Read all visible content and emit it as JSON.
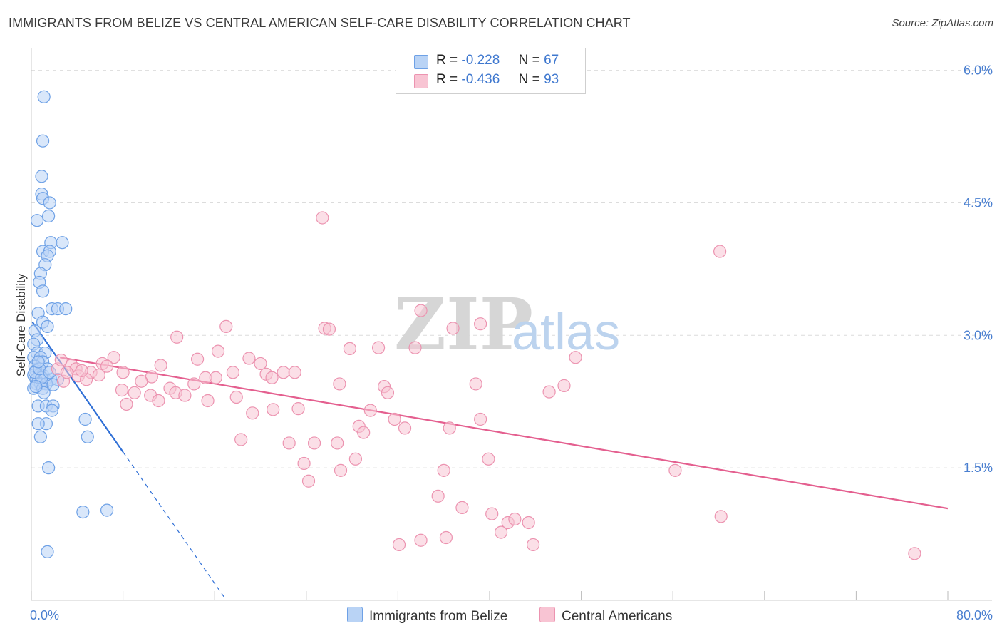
{
  "header": {
    "title": "IMMIGRANTS FROM BELIZE VS CENTRAL AMERICAN SELF-CARE DISABILITY CORRELATION CHART",
    "source": "Source: ZipAtlas.com"
  },
  "watermark": {
    "zip": "ZIP",
    "atlas": "atlas"
  },
  "stats": {
    "belize": {
      "r_label": "R =",
      "r": "-0.228",
      "n_label": "N =",
      "n": "67"
    },
    "central": {
      "r_label": "R =",
      "r": "-0.436",
      "n_label": "N =",
      "n": "93"
    }
  },
  "legend": {
    "belize": "Immigrants from Belize",
    "central": "Central Americans"
  },
  "colors": {
    "belize_fill": "#b9d3f5",
    "belize_stroke": "#6ea1e6",
    "belize_line": "#2f6fd6",
    "central_fill": "#f8c4d3",
    "central_stroke": "#ec93b0",
    "central_line": "#e45f8f",
    "tick": "#4a7fd0",
    "grid": "#dcdcdc"
  },
  "chart_data": {
    "type": "scatter",
    "title": "IMMIGRANTS FROM BELIZE VS CENTRAL AMERICAN SELF-CARE DISABILITY CORRELATION CHART",
    "xlabel": "",
    "ylabel": "Self-Care Disability",
    "xlim": [
      0,
      80
    ],
    "ylim": [
      0,
      6.15
    ],
    "x_tick_labels": [
      {
        "value": 0,
        "label": "0.0%"
      },
      {
        "value": 80,
        "label": "80.0%"
      }
    ],
    "y_ticks": [
      {
        "value": 1.5,
        "label": "1.5%"
      },
      {
        "value": 3.0,
        "label": "3.0%"
      },
      {
        "value": 4.5,
        "label": "4.5%"
      },
      {
        "value": 6.0,
        "label": "6.0%"
      }
    ],
    "series": [
      {
        "name": "Immigrants from Belize",
        "r": -0.228,
        "n": 67,
        "trend": {
          "x1": 0.1,
          "y1": 3.15,
          "x2": 8.0,
          "y2": 1.68,
          "dash_to_x": 17.0
        },
        "points": [
          [
            1.1,
            5.7
          ],
          [
            1.0,
            5.2
          ],
          [
            0.9,
            4.8
          ],
          [
            0.9,
            4.6
          ],
          [
            1.0,
            4.55
          ],
          [
            1.6,
            4.5
          ],
          [
            0.5,
            4.3
          ],
          [
            1.5,
            4.35
          ],
          [
            1.7,
            4.05
          ],
          [
            2.7,
            4.05
          ],
          [
            1.0,
            3.95
          ],
          [
            1.6,
            3.95
          ],
          [
            1.4,
            3.9
          ],
          [
            1.2,
            3.8
          ],
          [
            0.8,
            3.7
          ],
          [
            0.7,
            3.6
          ],
          [
            1.0,
            3.5
          ],
          [
            1.8,
            3.3
          ],
          [
            2.3,
            3.3
          ],
          [
            3.0,
            3.3
          ],
          [
            0.6,
            3.25
          ],
          [
            1.0,
            3.15
          ],
          [
            1.4,
            3.1
          ],
          [
            0.3,
            3.05
          ],
          [
            0.5,
            2.95
          ],
          [
            0.2,
            2.9
          ],
          [
            0.5,
            2.8
          ],
          [
            1.2,
            2.8
          ],
          [
            0.2,
            2.75
          ],
          [
            0.8,
            2.75
          ],
          [
            1.0,
            2.7
          ],
          [
            0.3,
            2.65
          ],
          [
            0.4,
            2.6
          ],
          [
            0.2,
            2.55
          ],
          [
            0.7,
            2.55
          ],
          [
            1.0,
            2.55
          ],
          [
            0.4,
            2.5
          ],
          [
            1.2,
            2.5
          ],
          [
            1.7,
            2.5
          ],
          [
            2.3,
            2.5
          ],
          [
            0.5,
            2.45
          ],
          [
            0.8,
            2.45
          ],
          [
            1.3,
            2.45
          ],
          [
            0.2,
            2.4
          ],
          [
            1.0,
            2.4
          ],
          [
            0.6,
            2.2
          ],
          [
            1.3,
            2.2
          ],
          [
            1.9,
            2.2
          ],
          [
            1.8,
            2.15
          ],
          [
            4.7,
            2.05
          ],
          [
            1.3,
            2.0
          ],
          [
            0.6,
            2.0
          ],
          [
            4.9,
            1.85
          ],
          [
            0.8,
            1.85
          ],
          [
            1.5,
            1.5
          ],
          [
            4.5,
            1.0
          ],
          [
            6.6,
            1.02
          ],
          [
            1.4,
            0.55
          ],
          [
            0.3,
            2.58
          ],
          [
            1.4,
            2.62
          ],
          [
            0.9,
            2.52
          ],
          [
            1.1,
            2.35
          ],
          [
            0.4,
            2.42
          ],
          [
            0.7,
            2.62
          ],
          [
            1.6,
            2.58
          ],
          [
            0.6,
            2.7
          ],
          [
            1.9,
            2.44
          ]
        ]
      },
      {
        "name": "Central Americans",
        "r": -0.436,
        "n": 93,
        "trend": {
          "x1": 2.5,
          "y1": 2.75,
          "x2": 80.0,
          "y2": 1.04
        },
        "points": [
          [
            25.4,
            4.33
          ],
          [
            60.1,
            3.95
          ],
          [
            34.0,
            3.28
          ],
          [
            39.2,
            3.13
          ],
          [
            17.0,
            3.1
          ],
          [
            25.6,
            3.08
          ],
          [
            26.0,
            3.07
          ],
          [
            36.8,
            3.08
          ],
          [
            12.7,
            2.98
          ],
          [
            27.8,
            2.85
          ],
          [
            30.3,
            2.86
          ],
          [
            33.5,
            2.86
          ],
          [
            16.3,
            2.82
          ],
          [
            7.2,
            2.75
          ],
          [
            19.0,
            2.74
          ],
          [
            47.5,
            2.75
          ],
          [
            14.5,
            2.73
          ],
          [
            20.0,
            2.68
          ],
          [
            6.2,
            2.68
          ],
          [
            11.3,
            2.66
          ],
          [
            3.5,
            2.66
          ],
          [
            6.6,
            2.65
          ],
          [
            2.3,
            2.62
          ],
          [
            3.9,
            2.62
          ],
          [
            5.2,
            2.58
          ],
          [
            8.0,
            2.58
          ],
          [
            4.1,
            2.54
          ],
          [
            17.6,
            2.58
          ],
          [
            20.5,
            2.56
          ],
          [
            22.0,
            2.58
          ],
          [
            23.0,
            2.58
          ],
          [
            5.9,
            2.55
          ],
          [
            10.5,
            2.53
          ],
          [
            15.2,
            2.52
          ],
          [
            16.1,
            2.52
          ],
          [
            21.0,
            2.52
          ],
          [
            4.8,
            2.5
          ],
          [
            9.6,
            2.48
          ],
          [
            2.8,
            2.48
          ],
          [
            14.2,
            2.45
          ],
          [
            26.9,
            2.45
          ],
          [
            38.8,
            2.45
          ],
          [
            46.5,
            2.43
          ],
          [
            30.8,
            2.42
          ],
          [
            12.1,
            2.4
          ],
          [
            7.9,
            2.38
          ],
          [
            12.6,
            2.35
          ],
          [
            9.0,
            2.35
          ],
          [
            31.1,
            2.35
          ],
          [
            45.2,
            2.36
          ],
          [
            10.4,
            2.32
          ],
          [
            13.4,
            2.32
          ],
          [
            17.9,
            2.3
          ],
          [
            11.1,
            2.26
          ],
          [
            15.4,
            2.26
          ],
          [
            8.3,
            2.22
          ],
          [
            23.3,
            2.17
          ],
          [
            21.1,
            2.16
          ],
          [
            29.6,
            2.15
          ],
          [
            19.3,
            2.12
          ],
          [
            31.7,
            2.05
          ],
          [
            39.2,
            2.05
          ],
          [
            28.6,
            1.97
          ],
          [
            32.6,
            1.95
          ],
          [
            36.5,
            1.95
          ],
          [
            29.0,
            1.9
          ],
          [
            18.3,
            1.82
          ],
          [
            22.5,
            1.78
          ],
          [
            24.7,
            1.78
          ],
          [
            26.7,
            1.78
          ],
          [
            28.3,
            1.6
          ],
          [
            39.9,
            1.6
          ],
          [
            23.8,
            1.55
          ],
          [
            36.0,
            1.47
          ],
          [
            27.0,
            1.47
          ],
          [
            56.2,
            1.47
          ],
          [
            24.2,
            1.35
          ],
          [
            35.5,
            1.18
          ],
          [
            37.6,
            1.05
          ],
          [
            40.2,
            0.98
          ],
          [
            41.6,
            0.88
          ],
          [
            42.2,
            0.92
          ],
          [
            43.4,
            0.88
          ],
          [
            60.2,
            0.95
          ],
          [
            41.0,
            0.77
          ],
          [
            34.0,
            0.68
          ],
          [
            36.2,
            0.71
          ],
          [
            43.8,
            0.63
          ],
          [
            32.1,
            0.63
          ],
          [
            77.1,
            0.53
          ],
          [
            3.1,
            2.58
          ],
          [
            2.6,
            2.72
          ],
          [
            4.4,
            2.6
          ]
        ]
      }
    ]
  }
}
